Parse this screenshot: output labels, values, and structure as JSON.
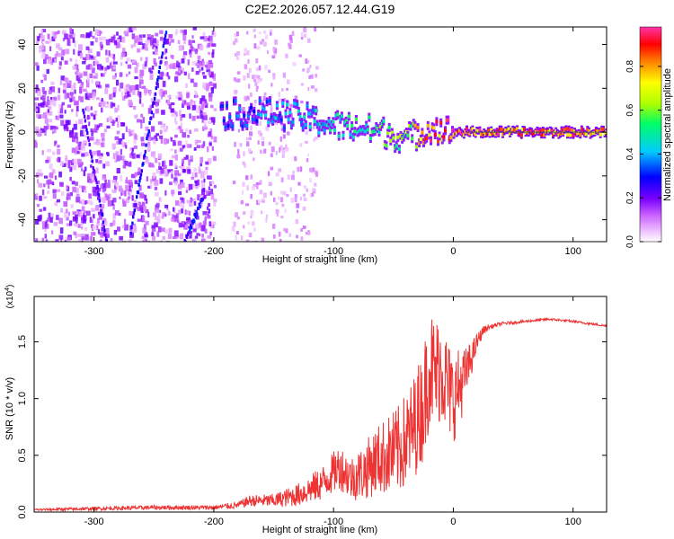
{
  "title": "C2E2.2026.057.12.44.G19",
  "chart_data": [
    {
      "type": "heatmap",
      "xlabel": "Height of straight line (km)",
      "ylabel": "Frequency (Hz)",
      "xlim": [
        -350,
        128
      ],
      "ylim": [
        -50,
        48
      ],
      "xticks": [
        -300,
        -200,
        -100,
        0,
        100
      ],
      "yticks": [
        -40,
        -20,
        0,
        20,
        40
      ],
      "colorbar": {
        "label": "Normalized spectral amplitude",
        "range": [
          0.0,
          0.98
        ],
        "ticks": [
          0.0,
          0.2,
          0.4,
          0.6,
          0.8
        ],
        "colormap": [
          "#ffffff",
          "#ff00ff",
          "#6600ff",
          "#0000ff",
          "#00ffff",
          "#00ff00",
          "#ffff00",
          "#ff8000",
          "#ff0000",
          "#ff33cc"
        ]
      },
      "description_series": [
        {
          "name": "main spectral ridge",
          "x": [
            -195,
            -160,
            -130,
            -100,
            -80,
            -60,
            -40,
            -20,
            0,
            20,
            60,
            100,
            128
          ],
          "y": [
            8,
            9,
            7,
            3,
            2,
            0,
            -3,
            2,
            0,
            0,
            0,
            0,
            0
          ],
          "amplitude": [
            0.35,
            0.4,
            0.45,
            0.5,
            0.55,
            0.6,
            0.65,
            0.9,
            0.95,
            0.92,
            0.9,
            0.9,
            0.88
          ]
        },
        {
          "name": "diagonal streak 1",
          "x": [
            -310,
            -290
          ],
          "y": [
            10,
            -50
          ],
          "amplitude": [
            0.25,
            0.25
          ]
        },
        {
          "name": "diagonal streak 2",
          "x": [
            -270,
            -240
          ],
          "y": [
            -45,
            48
          ],
          "amplitude": [
            0.3,
            0.3
          ]
        },
        {
          "name": "diagonal streak 3",
          "x": [
            -225,
            -210
          ],
          "y": [
            -50,
            -30
          ],
          "amplitude": [
            0.3,
            0.3
          ]
        }
      ]
    },
    {
      "type": "line",
      "xlabel": "Height of straight line (km)",
      "ylabel": "SNR (10 * v/v)",
      "yscale_label": "(x10",
      "yscale_exp": "4",
      "yscale_close": ")",
      "xlim": [
        -350,
        128
      ],
      "ylim": [
        0,
        1.9
      ],
      "xticks": [
        -300,
        -200,
        -100,
        0,
        100
      ],
      "yticks": [
        "0.0",
        "0.5",
        "1.0",
        "1.5"
      ],
      "series": [
        {
          "name": "SNR",
          "color": "#ee3333",
          "x": [
            -350,
            -300,
            -250,
            -200,
            -180,
            -170,
            -150,
            -130,
            -110,
            -95,
            -85,
            -75,
            -65,
            -55,
            -45,
            -35,
            -25,
            -20,
            -15,
            -10,
            -5,
            0,
            5,
            10,
            15,
            20,
            25,
            30,
            40,
            60,
            80,
            100,
            128
          ],
          "y": [
            0.02,
            0.03,
            0.04,
            0.04,
            0.06,
            0.1,
            0.1,
            0.15,
            0.25,
            0.4,
            0.3,
            0.35,
            0.45,
            0.5,
            0.55,
            0.7,
            0.95,
            1.3,
            1.2,
            1.3,
            1.1,
            1.0,
            1.1,
            1.2,
            1.35,
            1.5,
            1.6,
            1.63,
            1.66,
            1.68,
            1.7,
            1.68,
            1.64
          ],
          "spread": [
            0.01,
            0.015,
            0.02,
            0.02,
            0.03,
            0.05,
            0.06,
            0.1,
            0.15,
            0.2,
            0.2,
            0.25,
            0.3,
            0.35,
            0.4,
            0.45,
            0.5,
            0.55,
            0.5,
            0.5,
            0.45,
            0.4,
            0.35,
            0.25,
            0.15,
            0.08,
            0.04,
            0.02,
            0.015,
            0.01,
            0.01,
            0.01,
            0.01
          ]
        }
      ]
    }
  ]
}
